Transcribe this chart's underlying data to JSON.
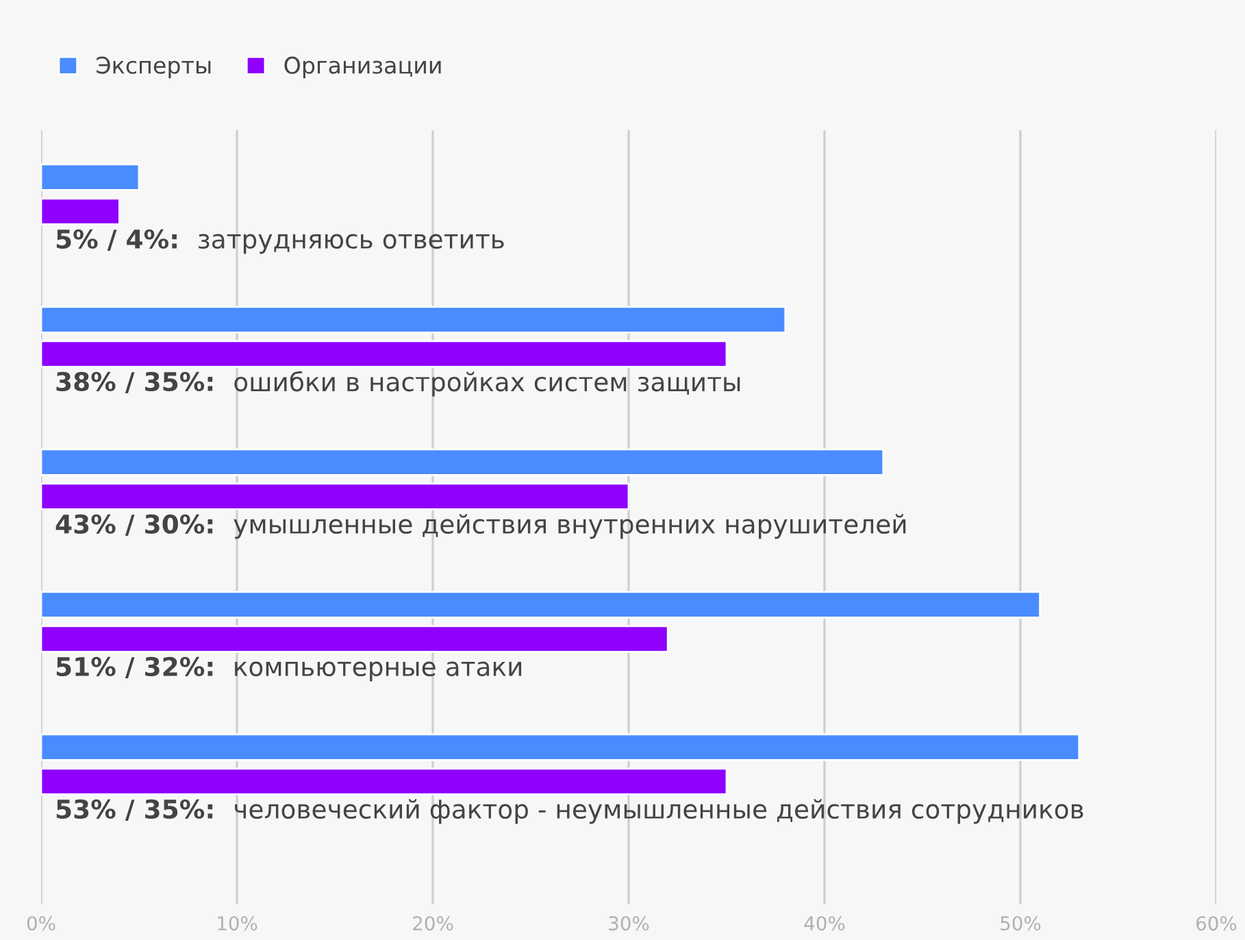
{
  "chart_data": {
    "type": "bar",
    "orientation": "horizontal",
    "categories": [
      "затрудняюсь ответить",
      "ошибки в настройках систем защиты",
      "умышленные действия внутренних нарушителей",
      "компьютерные атаки",
      "человеческий фактор - неумышленные действия сотрудников"
    ],
    "series": [
      {
        "name": "Эксперты",
        "color": "#4a8cff",
        "values": [
          5,
          38,
          43,
          51,
          53
        ],
        "value_labels": [
          "5% /",
          "38% /",
          "43% /",
          "51% /",
          "53% /"
        ]
      },
      {
        "name": "Организации",
        "color": "#8f00ff",
        "values": [
          4,
          35,
          30,
          32,
          35
        ],
        "value_labels": [
          "4%:",
          "35%:",
          "30%:",
          "32%:",
          "35%:"
        ]
      }
    ],
    "xlim": [
      0,
      60
    ],
    "xticks": [
      {
        "value": 0,
        "label": "0%"
      },
      {
        "value": 10,
        "label": "10%"
      },
      {
        "value": 20,
        "label": "20%"
      },
      {
        "value": 30,
        "label": "30%"
      },
      {
        "value": 40,
        "label": "40%"
      },
      {
        "value": 50,
        "label": "50%"
      },
      {
        "value": 60,
        "label": "60%"
      }
    ],
    "grid": "x",
    "legend": "top left"
  }
}
